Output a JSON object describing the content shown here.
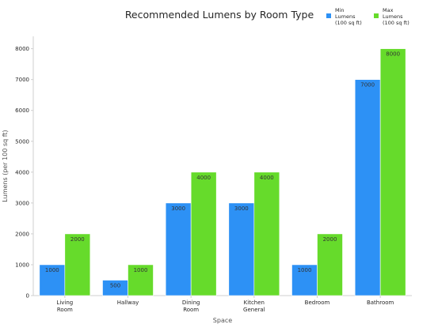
{
  "chart_data": {
    "type": "bar",
    "title": "Recommended Lumens by Room Type",
    "xlabel": "Space",
    "ylabel": "Lumens (per 100 sq ft)",
    "categories": [
      [
        "Living",
        "Room"
      ],
      [
        "Hallway"
      ],
      [
        "Dining",
        "Room"
      ],
      [
        "Kitchen",
        "General"
      ],
      [
        "Bedroom"
      ],
      [
        "Bathroom"
      ]
    ],
    "series": [
      {
        "name": [
          "Min",
          "Lumens",
          "(100 sq ft)"
        ],
        "color": "#2d91f5",
        "values": [
          1000,
          500,
          3000,
          3000,
          1000,
          7000
        ]
      },
      {
        "name": [
          "Max",
          "Lumens",
          "(100 sq ft)"
        ],
        "color": "#66db2b",
        "values": [
          2000,
          1000,
          4000,
          4000,
          2000,
          8000
        ]
      }
    ],
    "ylim": [
      0,
      8400
    ],
    "yticks": [
      0,
      1000,
      2000,
      3000,
      4000,
      5000,
      6000,
      7000,
      8000
    ],
    "grid": false,
    "legend": "top-right",
    "data_labels": true
  }
}
